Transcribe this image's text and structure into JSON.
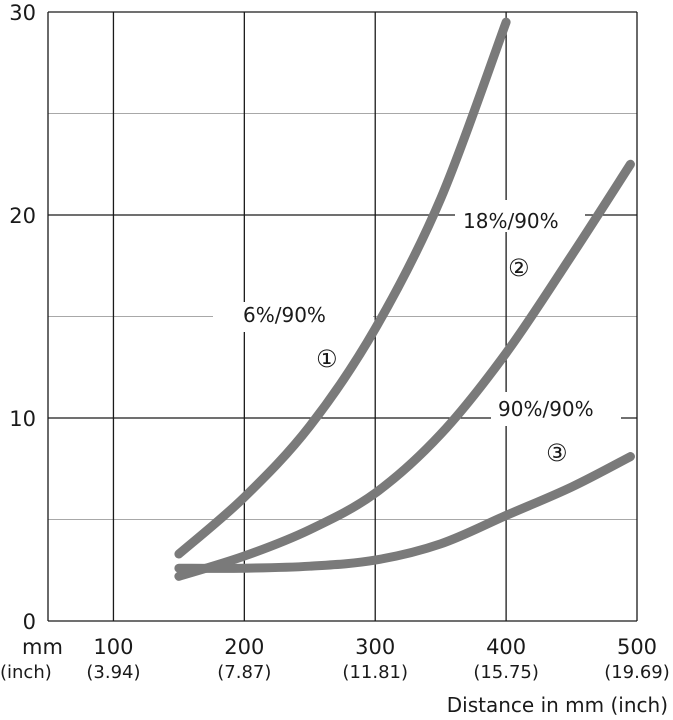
{
  "chart_data": {
    "type": "line",
    "title": "",
    "xlabel": "Distance in mm (inch)",
    "ylabel": "",
    "xlim": [
      50,
      500
    ],
    "ylim": [
      0,
      30
    ],
    "grid": true,
    "x_unit_label": "mm",
    "x_unit_sub_label": "(inch)",
    "x_ticks": [
      {
        "value": 100,
        "label": "100",
        "sub": "(3.94)"
      },
      {
        "value": 200,
        "label": "200",
        "sub": "(7.87)"
      },
      {
        "value": 300,
        "label": "300",
        "sub": "(11.81)"
      },
      {
        "value": 400,
        "label": "400",
        "sub": "(15.75)"
      },
      {
        "value": 500,
        "label": "500",
        "sub": "(19.69)"
      }
    ],
    "y_ticks": [
      {
        "value": 0,
        "label": "0"
      },
      {
        "value": 10,
        "label": "10"
      },
      {
        "value": 20,
        "label": "20"
      },
      {
        "value": 30,
        "label": "30"
      }
    ],
    "y_minor_ticks": [
      5,
      15,
      25
    ],
    "series": [
      {
        "name": "6%/90%",
        "marker": "①",
        "color": "#7a7a7a",
        "x": [
          150,
          200,
          250,
          300,
          350,
          400
        ],
        "y": [
          3.3,
          6.1,
          9.6,
          14.4,
          20.8,
          29.5
        ]
      },
      {
        "name": "18%/90%",
        "marker": "②",
        "color": "#7a7a7a",
        "x": [
          150,
          200,
          250,
          300,
          350,
          400,
          450,
          495
        ],
        "y": [
          2.2,
          3.2,
          4.5,
          6.3,
          9.2,
          13.2,
          18.0,
          22.5
        ]
      },
      {
        "name": "90%/90%",
        "marker": "③",
        "color": "#7a7a7a",
        "x": [
          150,
          200,
          250,
          300,
          350,
          400,
          450,
          495
        ],
        "y": [
          2.6,
          2.6,
          2.7,
          3.0,
          3.8,
          5.2,
          6.6,
          8.1
        ]
      }
    ]
  }
}
